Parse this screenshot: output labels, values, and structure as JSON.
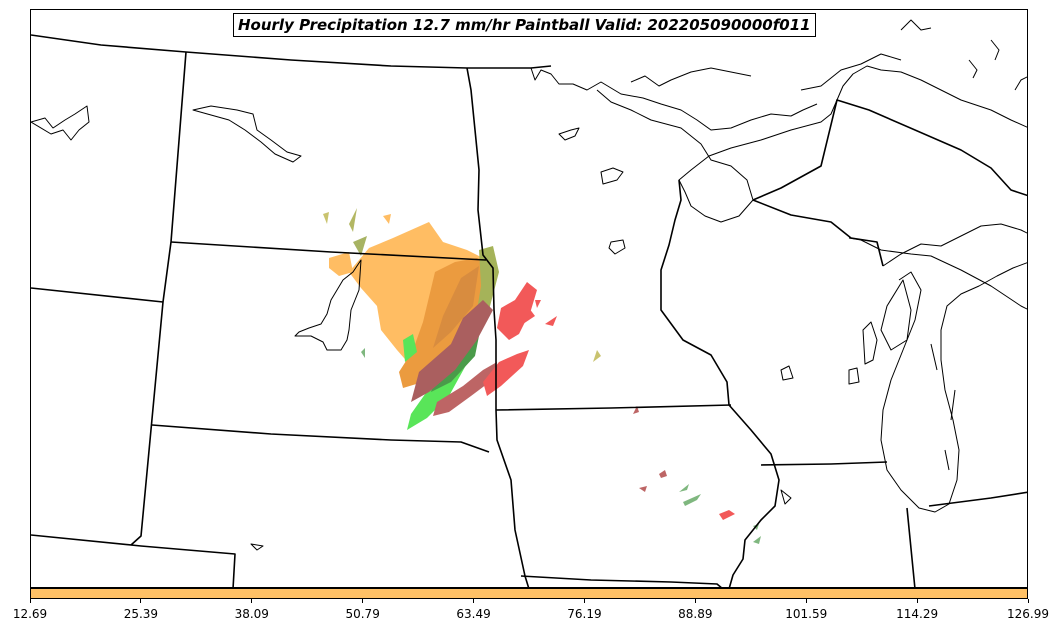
{
  "title": "Hourly Precipitation 12.7 mm/hr Paintball Valid: 202205090000f011",
  "colorbar": {
    "color": "#FFC166",
    "tick_labels": [
      "12.69",
      "25.39",
      "38.09",
      "50.79",
      "63.49",
      "76.19",
      "88.89",
      "101.59",
      "114.29",
      "126.99"
    ]
  },
  "colors": {
    "orange_light": "#FFB347",
    "orange_dark": "#E07800",
    "red": "#EE2222",
    "dark_red": "#A83232",
    "green_bright": "#33DD33",
    "green_dark": "#118811",
    "green_muted": "#55A055",
    "olive": "#B8B040"
  }
}
